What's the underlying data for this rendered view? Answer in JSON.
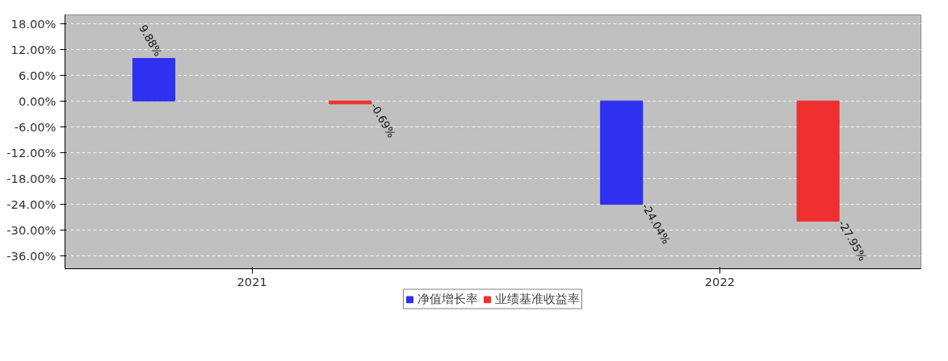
{
  "chart_data": {
    "type": "bar",
    "categories": [
      "2021",
      "2022"
    ],
    "series": [
      {
        "name": "净值增长率",
        "color": "#3030f0",
        "values": [
          9.88,
          -24.04
        ]
      },
      {
        "name": "业绩基准收益率",
        "color": "#f03030",
        "values": [
          -0.69,
          -27.95
        ]
      }
    ],
    "ylim": [
      -39,
      20
    ],
    "yticks": [
      {
        "value": 18,
        "label": "18.00%"
      },
      {
        "value": 12,
        "label": "12.00%"
      },
      {
        "value": 6,
        "label": "6.00%"
      },
      {
        "value": 0,
        "label": "0.00%"
      },
      {
        "value": -6,
        "label": "-6.00%"
      },
      {
        "value": -12,
        "label": "-12.00%"
      },
      {
        "value": -18,
        "label": "-18.00%"
      },
      {
        "value": -24,
        "label": "-24.00%"
      },
      {
        "value": -30,
        "label": "-30.00%"
      },
      {
        "value": -36,
        "label": "-36.00%"
      }
    ],
    "value_labels": [
      [
        "9.88%",
        "-24.04%"
      ],
      [
        "-0.69%",
        "-27.95%"
      ]
    ],
    "grid": "y",
    "legend": "bottom"
  }
}
